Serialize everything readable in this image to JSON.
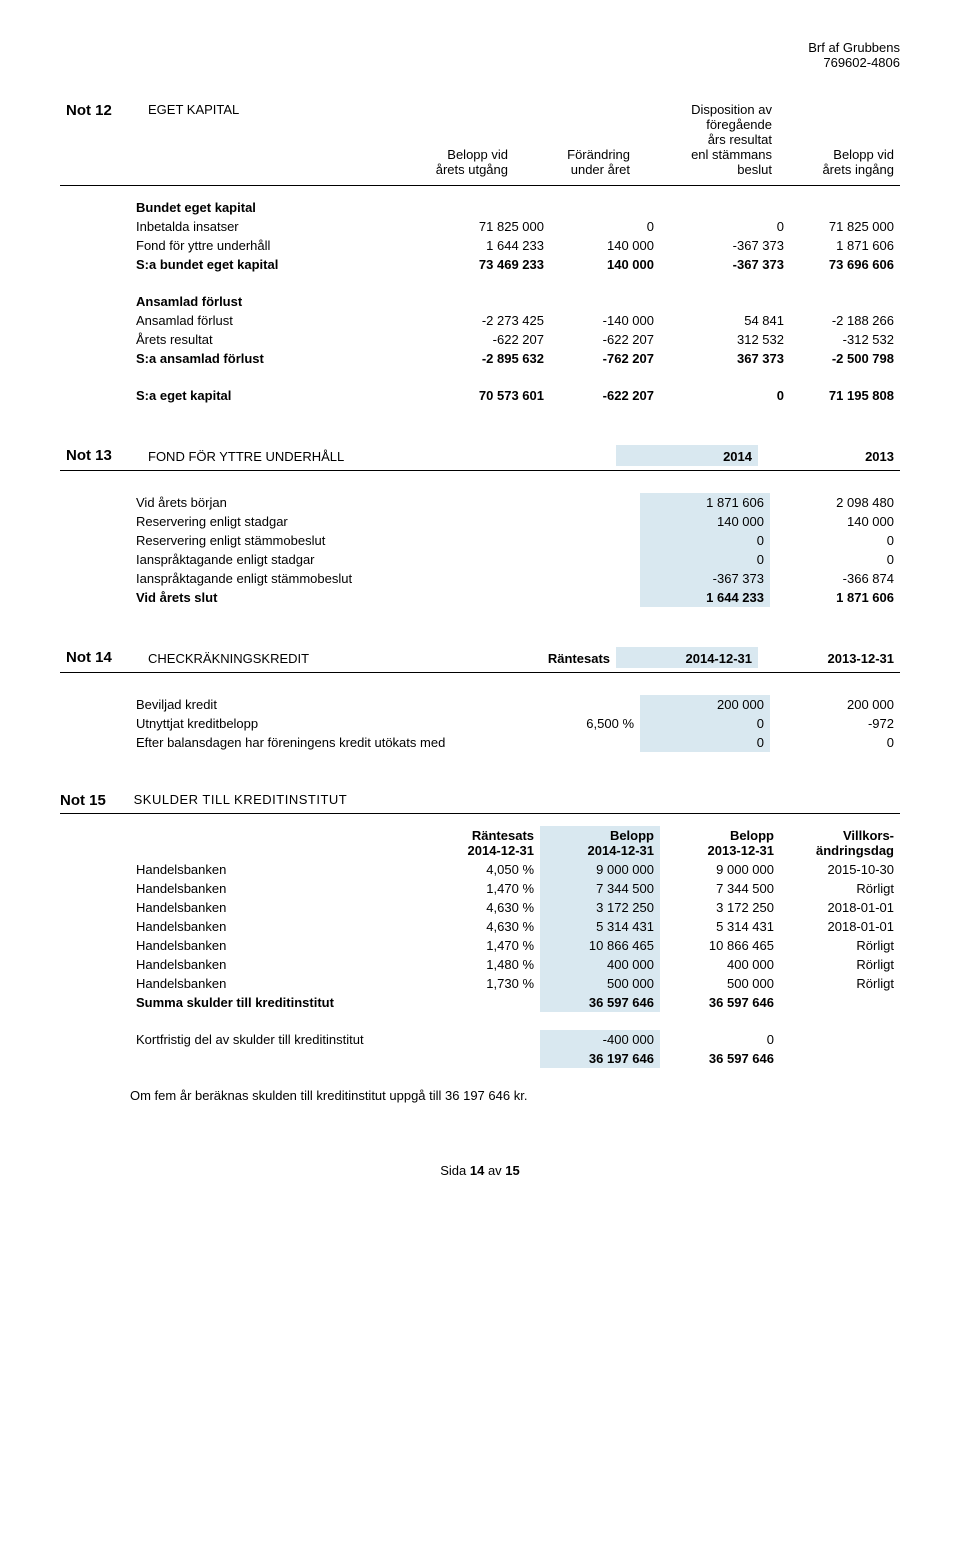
{
  "header": {
    "company": "Brf af Grubbens",
    "orgnr": "769602-4806"
  },
  "note12": {
    "label": "Not 12",
    "title": "EGET KAPITAL",
    "col1": "Belopp vid\nårets utgång",
    "col2": "Förändring\nunder året",
    "col3": "Disposition av\nföregående\nårs resultat\nenl stämmans\nbeslut",
    "col4": "Belopp vid\nårets ingång",
    "section1_title": "Bundet eget kapital",
    "r1": {
      "label": "Inbetalda insatser",
      "c1": "71 825 000",
      "c2": "0",
      "c3": "0",
      "c4": "71 825 000"
    },
    "r2": {
      "label": "Fond för yttre underhåll",
      "c1": "1 644 233",
      "c2": "140 000",
      "c3": "-367 373",
      "c4": "1 871 606"
    },
    "r3": {
      "label": "S:a bundet eget kapital",
      "c1": "73 469 233",
      "c2": "140 000",
      "c3": "-367 373",
      "c4": "73 696 606"
    },
    "section2_title": "Ansamlad förlust",
    "r4": {
      "label": "Ansamlad förlust",
      "c1": "-2 273 425",
      "c2": "-140 000",
      "c3": "54 841",
      "c4": "-2 188 266"
    },
    "r5": {
      "label": "Årets resultat",
      "c1": "-622 207",
      "c2": "-622 207",
      "c3": "312 532",
      "c4": "-312 532"
    },
    "r6": {
      "label": "S:a ansamlad förlust",
      "c1": "-2 895 632",
      "c2": "-762 207",
      "c3": "367 373",
      "c4": "-2 500 798"
    },
    "r7": {
      "label": "S:a eget kapital",
      "c1": "70 573 601",
      "c2": "-622 207",
      "c3": "0",
      "c4": "71 195 808"
    }
  },
  "note13": {
    "label": "Not 13",
    "title": "FOND FÖR YTTRE UNDERHÅLL",
    "col1": "2014",
    "col2": "2013",
    "r1": {
      "label": "Vid årets början",
      "c1": "1 871 606",
      "c2": "2 098 480"
    },
    "r2": {
      "label": "Reservering enligt stadgar",
      "c1": "140 000",
      "c2": "140 000"
    },
    "r3": {
      "label": "Reservering enligt stämmobeslut",
      "c1": "0",
      "c2": "0"
    },
    "r4": {
      "label": "Ianspråktagande enligt stadgar",
      "c1": "0",
      "c2": "0"
    },
    "r5": {
      "label": "Ianspråktagande enligt stämmobeslut",
      "c1": "-367 373",
      "c2": "-366 874"
    },
    "r6": {
      "label": "Vid årets slut",
      "c1": "1 644 233",
      "c2": "1 871 606"
    }
  },
  "note14": {
    "label": "Not 14",
    "title": "CHECKRÄKNINGSKREDIT",
    "col_rate": "Räntesats",
    "col1": "2014-12-31",
    "col2": "2013-12-31",
    "r1": {
      "label": "Beviljad kredit",
      "rate": "",
      "c1": "200 000",
      "c2": "200 000"
    },
    "r2": {
      "label": "Utnyttjat kreditbelopp",
      "rate": "6,500 %",
      "c1": "0",
      "c2": "-972"
    },
    "r3": {
      "label": "Efter balansdagen har föreningens kredit utökats med",
      "rate": "",
      "c1": "0",
      "c2": "0"
    }
  },
  "note15": {
    "label": "Not 15",
    "title": "SKULDER TILL KREDITINSTITUT",
    "h_rate1": "Räntesats",
    "h_rate2": "2014-12-31",
    "h_b1": "Belopp",
    "h_b1b": "2014-12-31",
    "h_b2": "Belopp",
    "h_b2b": "2013-12-31",
    "h_v1": "Villkors-",
    "h_v2": "ändringsdag",
    "rows": [
      {
        "label": "Handelsbanken",
        "rate": "4,050 %",
        "c1": "9 000 000",
        "c2": "9 000 000",
        "c3": "2015-10-30"
      },
      {
        "label": "Handelsbanken",
        "rate": "1,470 %",
        "c1": "7 344 500",
        "c2": "7 344 500",
        "c3": "Rörligt"
      },
      {
        "label": "Handelsbanken",
        "rate": "4,630 %",
        "c1": "3 172 250",
        "c2": "3 172 250",
        "c3": "2018-01-01"
      },
      {
        "label": "Handelsbanken",
        "rate": "4,630 %",
        "c1": "5 314 431",
        "c2": "5 314 431",
        "c3": "2018-01-01"
      },
      {
        "label": "Handelsbanken",
        "rate": "1,470 %",
        "c1": "10 866 465",
        "c2": "10 866 465",
        "c3": "Rörligt"
      },
      {
        "label": "Handelsbanken",
        "rate": "1,480 %",
        "c1": "400 000",
        "c2": "400 000",
        "c3": "Rörligt"
      },
      {
        "label": "Handelsbanken",
        "rate": "1,730 %",
        "c1": "500 000",
        "c2": "500 000",
        "c3": "Rörligt"
      }
    ],
    "sum": {
      "label": "Summa skulder till kreditinstitut",
      "c1": "36 597 646",
      "c2": "36 597 646"
    },
    "short": {
      "label": "Kortfristig del av skulder till kreditinstitut",
      "c1": "-400 000",
      "c2": "0"
    },
    "total": {
      "c1": "36 197 646",
      "c2": "36 597 646"
    },
    "footer": "Om fem år beräknas skulden till kreditinstitut uppgå till 36 197 646 kr."
  },
  "page": {
    "text1": "Sida ",
    "num": "14",
    "text2": " av ",
    "total": "15"
  },
  "style": {
    "highlight_bg": "#d9e8f0",
    "text_color": "#000000",
    "font_size": 13
  }
}
